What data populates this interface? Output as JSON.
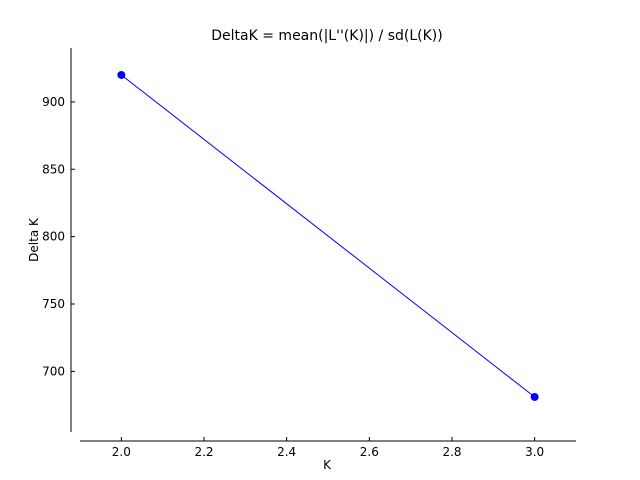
{
  "chart_data": {
    "type": "line",
    "title": "DeltaK = mean(|L''(K)|) / sd(L(K))",
    "xlabel": "K",
    "ylabel": "Delta K",
    "xlim": [
      1.9,
      3.1
    ],
    "ylim": [
      655,
      940
    ],
    "xticks": [
      2.0,
      2.2,
      2.4,
      2.6,
      2.8,
      3.0
    ],
    "xtick_labels": [
      "2.0",
      "2.2",
      "2.4",
      "2.6",
      "2.8",
      "3.0"
    ],
    "yticks": [
      700,
      750,
      800,
      850,
      900
    ],
    "ytick_labels": [
      "700",
      "750",
      "800",
      "850",
      "900"
    ],
    "grid": false,
    "series": [
      {
        "x": [
          2.0,
          3.0
        ],
        "y": [
          920,
          681
        ],
        "color": "#0000ff",
        "marker": "circle"
      }
    ]
  }
}
